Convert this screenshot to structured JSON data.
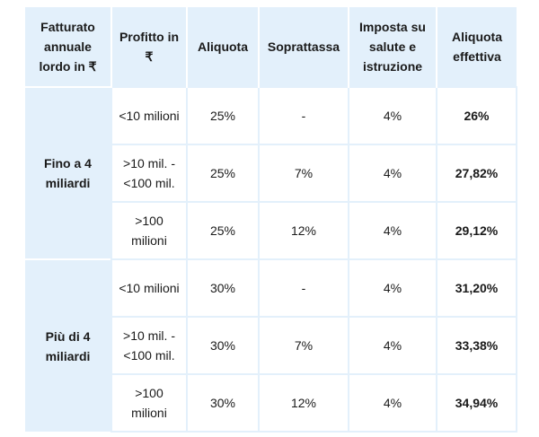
{
  "table": {
    "headers": [
      "Fatturato annuale lordo in ₹",
      "Profitto in ₹",
      "Aliquota",
      "Soprattassa",
      "Imposta su salute e istruzione",
      "Aliquota effettiva"
    ],
    "groups": [
      {
        "label": "Fino a 4 miliardi",
        "rows": [
          [
            "<10 milioni",
            "25%",
            "-",
            "4%",
            "26%"
          ],
          [
            ">10 mil. - <100 mil.",
            "25%",
            "7%",
            "4%",
            "27,82%"
          ],
          [
            ">100 milioni",
            "25%",
            "12%",
            "4%",
            "29,12%"
          ]
        ]
      },
      {
        "label": "Più di 4 miliardi",
        "rows": [
          [
            "<10 milioni",
            "30%",
            "-",
            "4%",
            "31,20%"
          ],
          [
            ">10 mil. - <100 mil.",
            "30%",
            "7%",
            "4%",
            "33,38%"
          ],
          [
            ">100 milioni",
            "30%",
            "12%",
            "4%",
            "34,94%"
          ]
        ]
      }
    ]
  }
}
